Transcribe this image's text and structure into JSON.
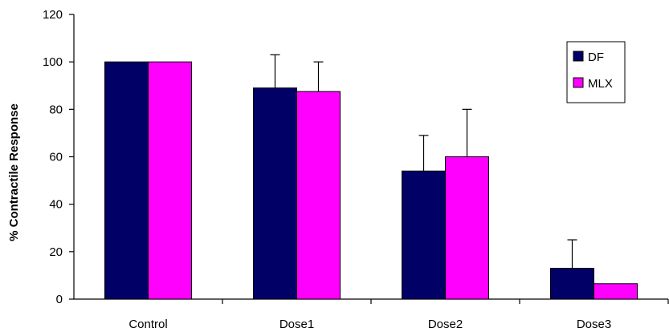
{
  "chart_data": {
    "type": "bar",
    "title": "",
    "xlabel": "",
    "ylabel": "% Contractile Response",
    "ylim": [
      0,
      120
    ],
    "yticks": [
      0,
      20,
      40,
      60,
      80,
      100,
      120
    ],
    "categories": [
      "Control",
      "Dose1",
      "Dose2",
      "Dose3"
    ],
    "series": [
      {
        "name": "DF",
        "color": "#000066",
        "values": [
          100,
          89,
          54,
          13
        ],
        "error_upper": [
          0,
          14,
          15,
          12
        ]
      },
      {
        "name": "MLX",
        "color": "#ff00ff",
        "values": [
          100,
          87.5,
          60,
          6.5
        ],
        "error_upper": [
          0,
          12.5,
          20,
          0
        ]
      }
    ],
    "grid": false,
    "legend": {
      "placement": "right"
    }
  }
}
